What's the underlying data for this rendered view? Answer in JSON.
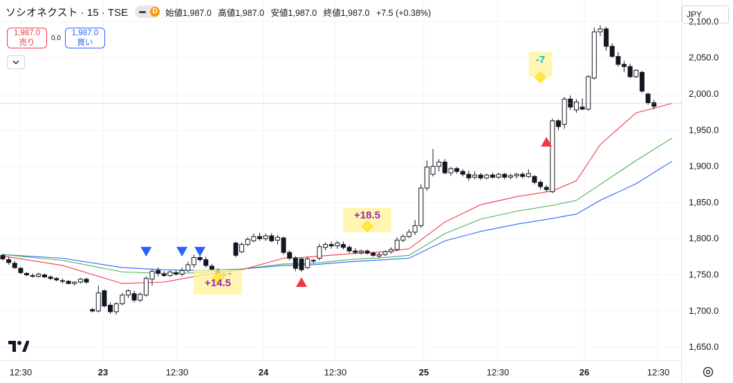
{
  "header": {
    "title": "ソシオネクスト · 15 · TSE",
    "badge": "D",
    "open_label": "始値",
    "open": "1,987.0",
    "high_label": "高値",
    "high": "1,987.0",
    "low_label": "安値",
    "low": "1,987.0",
    "close_label": "終値",
    "close": "1,987.0",
    "change": "+7.5 (+0.38%)"
  },
  "trade": {
    "sell_price": "1,987.0",
    "sell_label": "売り",
    "spread": "0.0",
    "buy_price": "1,987.0",
    "buy_label": "買い"
  },
  "currency": "JPY",
  "colors": {
    "up": "#131722",
    "down": "#131722",
    "ema_fast": "#f23645",
    "ema_mid": "#4caf50",
    "ema_slow": "#2962ff",
    "signal_down": "#2962ff",
    "signal_up": "#f23645",
    "annotation_bg": "#fff59d",
    "annotation_text": "#9c27b0"
  },
  "chart_data": {
    "type": "candlestick",
    "y_ticks": [
      "2,100.0",
      "2,050.0",
      "2,000.0",
      "1,950.0",
      "1,900.0",
      "1,850.0",
      "1,800.0",
      "1,750.0",
      "1,700.0",
      "1,650.0"
    ],
    "ylim": [
      1632,
      2130
    ],
    "x_ticks": [
      "12:30",
      "23",
      "12:30",
      "24",
      "12:30",
      "25",
      "12:30",
      "26",
      "12:30"
    ],
    "current_price": 1987,
    "candles": [
      {
        "o": 1777,
        "h": 1779,
        "l": 1770,
        "c": 1772
      },
      {
        "o": 1771,
        "h": 1775,
        "l": 1764,
        "c": 1767
      },
      {
        "o": 1766,
        "h": 1769,
        "l": 1758,
        "c": 1760
      },
      {
        "o": 1759,
        "h": 1761,
        "l": 1751,
        "c": 1753
      },
      {
        "o": 1752,
        "h": 1754,
        "l": 1748,
        "c": 1750
      },
      {
        "o": 1749,
        "h": 1752,
        "l": 1746,
        "c": 1748
      },
      {
        "o": 1748,
        "h": 1753,
        "l": 1746,
        "c": 1751
      },
      {
        "o": 1750,
        "h": 1752,
        "l": 1746,
        "c": 1747
      },
      {
        "o": 1747,
        "h": 1749,
        "l": 1743,
        "c": 1745
      },
      {
        "o": 1745,
        "h": 1747,
        "l": 1741,
        "c": 1743
      },
      {
        "o": 1742,
        "h": 1745,
        "l": 1738,
        "c": 1741
      },
      {
        "o": 1741,
        "h": 1743,
        "l": 1737,
        "c": 1738
      },
      {
        "o": 1738,
        "h": 1741,
        "l": 1735,
        "c": 1740
      },
      {
        "o": 1740,
        "h": 1746,
        "l": 1738,
        "c": 1744
      },
      {
        "o": 1744,
        "h": 1746,
        "l": 1738,
        "c": 1740
      },
      {
        "o": 1702,
        "h": 1704,
        "l": 1698,
        "c": 1700
      },
      {
        "o": 1700,
        "h": 1735,
        "l": 1698,
        "c": 1725
      },
      {
        "o": 1728,
        "h": 1730,
        "l": 1705,
        "c": 1707
      },
      {
        "o": 1708,
        "h": 1712,
        "l": 1696,
        "c": 1699
      },
      {
        "o": 1699,
        "h": 1712,
        "l": 1695,
        "c": 1710
      },
      {
        "o": 1710,
        "h": 1725,
        "l": 1708,
        "c": 1722
      },
      {
        "o": 1722,
        "h": 1730,
        "l": 1718,
        "c": 1728
      },
      {
        "o": 1724,
        "h": 1728,
        "l": 1712,
        "c": 1715
      },
      {
        "o": 1715,
        "h": 1726,
        "l": 1712,
        "c": 1723
      },
      {
        "o": 1722,
        "h": 1748,
        "l": 1720,
        "c": 1745
      },
      {
        "o": 1744,
        "h": 1758,
        "l": 1735,
        "c": 1755
      },
      {
        "o": 1756,
        "h": 1760,
        "l": 1748,
        "c": 1752
      },
      {
        "o": 1751,
        "h": 1755,
        "l": 1747,
        "c": 1749
      },
      {
        "o": 1749,
        "h": 1756,
        "l": 1747,
        "c": 1754
      },
      {
        "o": 1753,
        "h": 1756,
        "l": 1749,
        "c": 1751
      },
      {
        "o": 1751,
        "h": 1760,
        "l": 1748,
        "c": 1756
      },
      {
        "o": 1756,
        "h": 1768,
        "l": 1754,
        "c": 1764
      },
      {
        "o": 1764,
        "h": 1778,
        "l": 1760,
        "c": 1774
      },
      {
        "o": 1774,
        "h": 1776,
        "l": 1768,
        "c": 1771
      },
      {
        "o": 1771,
        "h": 1775,
        "l": 1760,
        "c": 1763
      },
      {
        "o": 1762,
        "h": 1765,
        "l": 1755,
        "c": 1757
      },
      {
        "o": 1757,
        "h": 1759,
        "l": 1746,
        "c": 1749
      },
      {
        "o": 1749,
        "h": 1753,
        "l": 1745,
        "c": 1751
      },
      {
        "o": 1751,
        "h": 1755,
        "l": 1747,
        "c": 1752
      },
      {
        "o": 1794,
        "h": 1796,
        "l": 1774,
        "c": 1777
      },
      {
        "o": 1782,
        "h": 1795,
        "l": 1780,
        "c": 1792
      },
      {
        "o": 1792,
        "h": 1802,
        "l": 1790,
        "c": 1799
      },
      {
        "o": 1797,
        "h": 1807,
        "l": 1795,
        "c": 1803
      },
      {
        "o": 1803,
        "h": 1808,
        "l": 1797,
        "c": 1800
      },
      {
        "o": 1800,
        "h": 1807,
        "l": 1797,
        "c": 1804
      },
      {
        "o": 1804,
        "h": 1808,
        "l": 1795,
        "c": 1797
      },
      {
        "o": 1798,
        "h": 1805,
        "l": 1792,
        "c": 1802
      },
      {
        "o": 1801,
        "h": 1803,
        "l": 1778,
        "c": 1781
      },
      {
        "o": 1781,
        "h": 1784,
        "l": 1770,
        "c": 1773
      },
      {
        "o": 1773,
        "h": 1776,
        "l": 1755,
        "c": 1759
      },
      {
        "o": 1772,
        "h": 1774,
        "l": 1754,
        "c": 1757
      },
      {
        "o": 1760,
        "h": 1775,
        "l": 1758,
        "c": 1772
      },
      {
        "o": 1770,
        "h": 1772,
        "l": 1766,
        "c": 1769
      },
      {
        "o": 1773,
        "h": 1793,
        "l": 1770,
        "c": 1789
      },
      {
        "o": 1788,
        "h": 1795,
        "l": 1784,
        "c": 1792
      },
      {
        "o": 1792,
        "h": 1796,
        "l": 1786,
        "c": 1790
      },
      {
        "o": 1790,
        "h": 1797,
        "l": 1786,
        "c": 1794
      },
      {
        "o": 1792,
        "h": 1796,
        "l": 1785,
        "c": 1788
      },
      {
        "o": 1788,
        "h": 1791,
        "l": 1780,
        "c": 1783
      },
      {
        "o": 1783,
        "h": 1787,
        "l": 1779,
        "c": 1781
      },
      {
        "o": 1781,
        "h": 1785,
        "l": 1778,
        "c": 1783
      },
      {
        "o": 1783,
        "h": 1785,
        "l": 1778,
        "c": 1780
      },
      {
        "o": 1780,
        "h": 1782,
        "l": 1775,
        "c": 1777
      },
      {
        "o": 1776,
        "h": 1781,
        "l": 1773,
        "c": 1778
      },
      {
        "o": 1778,
        "h": 1784,
        "l": 1776,
        "c": 1782
      },
      {
        "o": 1782,
        "h": 1788,
        "l": 1779,
        "c": 1785
      },
      {
        "o": 1785,
        "h": 1802,
        "l": 1783,
        "c": 1798
      },
      {
        "o": 1798,
        "h": 1806,
        "l": 1795,
        "c": 1803
      },
      {
        "o": 1803,
        "h": 1813,
        "l": 1801,
        "c": 1809
      },
      {
        "o": 1809,
        "h": 1826,
        "l": 1805,
        "c": 1818
      },
      {
        "o": 1818,
        "h": 1875,
        "l": 1815,
        "c": 1870
      },
      {
        "o": 1870,
        "h": 1908,
        "l": 1866,
        "c": 1899
      },
      {
        "o": 1889,
        "h": 1924,
        "l": 1886,
        "c": 1900
      },
      {
        "o": 1900,
        "h": 1910,
        "l": 1893,
        "c": 1906
      },
      {
        "o": 1906,
        "h": 1910,
        "l": 1889,
        "c": 1891
      },
      {
        "o": 1891,
        "h": 1899,
        "l": 1887,
        "c": 1897
      },
      {
        "o": 1897,
        "h": 1899,
        "l": 1890,
        "c": 1893
      },
      {
        "o": 1893,
        "h": 1896,
        "l": 1886,
        "c": 1889
      },
      {
        "o": 1889,
        "h": 1894,
        "l": 1880,
        "c": 1884
      },
      {
        "o": 1885,
        "h": 1893,
        "l": 1882,
        "c": 1888
      },
      {
        "o": 1888,
        "h": 1891,
        "l": 1881,
        "c": 1884
      },
      {
        "o": 1884,
        "h": 1890,
        "l": 1882,
        "c": 1888
      },
      {
        "o": 1888,
        "h": 1891,
        "l": 1883,
        "c": 1885
      },
      {
        "o": 1885,
        "h": 1891,
        "l": 1883,
        "c": 1889
      },
      {
        "o": 1889,
        "h": 1891,
        "l": 1882,
        "c": 1885
      },
      {
        "o": 1885,
        "h": 1890,
        "l": 1882,
        "c": 1887
      },
      {
        "o": 1887,
        "h": 1891,
        "l": 1883,
        "c": 1889
      },
      {
        "o": 1889,
        "h": 1892,
        "l": 1883,
        "c": 1886
      },
      {
        "o": 1886,
        "h": 1896,
        "l": 1884,
        "c": 1890
      },
      {
        "o": 1886,
        "h": 1888,
        "l": 1875,
        "c": 1878
      },
      {
        "o": 1878,
        "h": 1881,
        "l": 1868,
        "c": 1872
      },
      {
        "o": 1871,
        "h": 1874,
        "l": 1865,
        "c": 1868
      },
      {
        "o": 1865,
        "h": 1966,
        "l": 1863,
        "c": 1963
      },
      {
        "o": 1963,
        "h": 1965,
        "l": 1950,
        "c": 1955
      },
      {
        "o": 1958,
        "h": 1996,
        "l": 1952,
        "c": 1993
      },
      {
        "o": 1993,
        "h": 1998,
        "l": 1978,
        "c": 1982
      },
      {
        "o": 1978,
        "h": 1993,
        "l": 1974,
        "c": 1989
      },
      {
        "o": 1982,
        "h": 1994,
        "l": 1978,
        "c": 1979
      },
      {
        "o": 1979,
        "h": 2026,
        "l": 1977,
        "c": 2024
      },
      {
        "o": 2022,
        "h": 2092,
        "l": 2020,
        "c": 2086
      },
      {
        "o": 2086,
        "h": 2095,
        "l": 2080,
        "c": 2090
      },
      {
        "o": 2090,
        "h": 2093,
        "l": 2060,
        "c": 2066
      },
      {
        "o": 2066,
        "h": 2070,
        "l": 2050,
        "c": 2052
      },
      {
        "o": 2052,
        "h": 2058,
        "l": 2038,
        "c": 2041
      },
      {
        "o": 2041,
        "h": 2046,
        "l": 2030,
        "c": 2038
      },
      {
        "o": 2038,
        "h": 2042,
        "l": 2022,
        "c": 2024
      },
      {
        "o": 2024,
        "h": 2034,
        "l": 2022,
        "c": 2033
      },
      {
        "o": 2030,
        "h": 2032,
        "l": 2002,
        "c": 2004
      },
      {
        "o": 2000,
        "h": 2002,
        "l": 1985,
        "c": 1988
      },
      {
        "o": 1988,
        "h": 1992,
        "l": 1979,
        "c": 1983
      }
    ],
    "ema_fast": [
      [
        0,
        1776
      ],
      [
        10,
        1763
      ],
      [
        20,
        1738
      ],
      [
        27,
        1740
      ],
      [
        33,
        1749
      ],
      [
        40,
        1757
      ],
      [
        47,
        1773
      ],
      [
        50,
        1774
      ],
      [
        58,
        1779
      ],
      [
        64,
        1782
      ],
      [
        68,
        1786
      ],
      [
        74,
        1823
      ],
      [
        80,
        1847
      ],
      [
        86,
        1858
      ],
      [
        92,
        1866
      ],
      [
        96,
        1880
      ],
      [
        100,
        1930
      ],
      [
        106,
        1974
      ],
      [
        112,
        1987
      ]
    ],
    "ema_mid": [
      [
        0,
        1778
      ],
      [
        10,
        1770
      ],
      [
        20,
        1754
      ],
      [
        27,
        1752
      ],
      [
        33,
        1753
      ],
      [
        40,
        1758
      ],
      [
        47,
        1765
      ],
      [
        52,
        1766
      ],
      [
        58,
        1771
      ],
      [
        64,
        1774
      ],
      [
        68,
        1777
      ],
      [
        74,
        1807
      ],
      [
        80,
        1827
      ],
      [
        86,
        1838
      ],
      [
        92,
        1846
      ],
      [
        96,
        1853
      ],
      [
        100,
        1875
      ],
      [
        106,
        1908
      ],
      [
        112,
        1939
      ]
    ],
    "ema_slow": [
      [
        0,
        1778
      ],
      [
        10,
        1773
      ],
      [
        20,
        1760
      ],
      [
        27,
        1757
      ],
      [
        33,
        1756
      ],
      [
        40,
        1758
      ],
      [
        47,
        1763
      ],
      [
        52,
        1764
      ],
      [
        58,
        1768
      ],
      [
        64,
        1771
      ],
      [
        68,
        1773
      ],
      [
        74,
        1797
      ],
      [
        80,
        1810
      ],
      [
        86,
        1820
      ],
      [
        92,
        1828
      ],
      [
        96,
        1834
      ],
      [
        100,
        1853
      ],
      [
        106,
        1876
      ],
      [
        112,
        1907
      ]
    ],
    "signals": [
      {
        "type": "down",
        "index": 24,
        "price": 1782
      },
      {
        "type": "down",
        "index": 30,
        "price": 1782
      },
      {
        "type": "down",
        "index": 33,
        "price": 1782
      },
      {
        "type": "up",
        "index": 50,
        "price": 1740
      },
      {
        "type": "up",
        "index": 91,
        "price": 1934
      }
    ],
    "annotations": [
      {
        "text": "+14.5",
        "index": 36,
        "price": 1740,
        "marker_price": 1745
      },
      {
        "text": "+18.5",
        "index": 61,
        "price": 1826,
        "marker_price": 1817
      },
      {
        "text": "-7",
        "index": 90,
        "price": 2041,
        "marker_price": 2023
      }
    ]
  }
}
